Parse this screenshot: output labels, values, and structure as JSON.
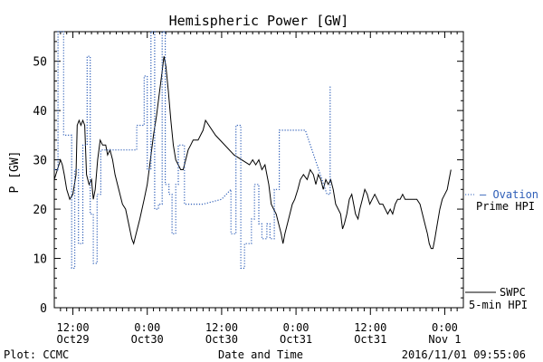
{
  "chart_data": {
    "type": "line",
    "title": "Hemispheric Power [GW]",
    "xlabel": "Date and Time",
    "ylabel": "P [GW]",
    "ylim": [
      0,
      56
    ],
    "xlim": [
      0,
      66
    ],
    "x_unit_note": "",
    "yticks": [
      0,
      10,
      20,
      30,
      40,
      50
    ],
    "xticks": [
      {
        "x": 3,
        "line1": "12:00",
        "line2": "Oct29"
      },
      {
        "x": 15,
        "line1": "0:00",
        "line2": "Oct30"
      },
      {
        "x": 27,
        "line1": "12:00",
        "line2": "Oct30"
      },
      {
        "x": 39,
        "line1": "0:00",
        "line2": "Oct31"
      },
      {
        "x": 51,
        "line1": "12:00",
        "line2": "Oct31"
      },
      {
        "x": 63,
        "line1": "0:00",
        "line2": "Nov 1"
      }
    ],
    "grid": false,
    "legend_placement": "right",
    "footer_left": "Plot: CCMC",
    "footer_right": "2016/11/01 09:55:06",
    "series": [
      {
        "name": "SWPC 5-min HPI",
        "label_line1": "SWPC",
        "label_line2": "5-min HPI",
        "color": "#000000",
        "style": "solid",
        "points": [
          [
            0,
            26
          ],
          [
            0.5,
            28
          ],
          [
            1,
            30
          ],
          [
            1.3,
            29
          ],
          [
            1.6,
            27
          ],
          [
            2,
            24
          ],
          [
            2.5,
            22
          ],
          [
            3,
            23
          ],
          [
            3.5,
            27
          ],
          [
            3.7,
            37
          ],
          [
            4,
            38
          ],
          [
            4.3,
            37
          ],
          [
            4.6,
            38
          ],
          [
            4.9,
            37
          ],
          [
            5.2,
            27
          ],
          [
            5.6,
            25
          ],
          [
            6,
            26
          ],
          [
            6.3,
            22
          ],
          [
            6.6,
            24
          ],
          [
            7,
            30
          ],
          [
            7.4,
            34
          ],
          [
            7.8,
            33
          ],
          [
            8.3,
            33
          ],
          [
            8.6,
            31
          ],
          [
            9,
            32
          ],
          [
            9.4,
            30
          ],
          [
            9.8,
            27
          ],
          [
            10.4,
            24
          ],
          [
            11,
            21
          ],
          [
            11.5,
            20
          ],
          [
            12,
            17
          ],
          [
            12.5,
            14
          ],
          [
            12.8,
            13
          ],
          [
            13.2,
            15
          ],
          [
            13.8,
            18
          ],
          [
            14.5,
            22
          ],
          [
            15,
            25
          ],
          [
            15.5,
            30
          ],
          [
            16,
            35
          ],
          [
            16.5,
            39
          ],
          [
            17,
            44
          ],
          [
            17.4,
            48
          ],
          [
            17.7,
            51
          ],
          [
            18,
            49
          ],
          [
            18.4,
            44
          ],
          [
            18.8,
            38
          ],
          [
            19.2,
            33
          ],
          [
            19.6,
            30
          ],
          [
            20,
            29
          ],
          [
            20.4,
            28
          ],
          [
            20.8,
            28
          ],
          [
            21.2,
            30
          ],
          [
            21.6,
            32
          ],
          [
            22,
            33
          ],
          [
            22.4,
            34
          ],
          [
            22.8,
            34
          ],
          [
            23.2,
            34
          ],
          [
            23.6,
            35
          ],
          [
            24,
            36
          ],
          [
            24.4,
            38
          ],
          [
            26,
            35
          ],
          [
            29,
            31
          ],
          [
            31.5,
            29
          ],
          [
            32,
            30
          ],
          [
            32.5,
            29
          ],
          [
            33,
            30
          ],
          [
            33.5,
            28
          ],
          [
            34,
            29
          ],
          [
            34.6,
            25
          ],
          [
            35,
            21
          ],
          [
            35.4,
            20
          ],
          [
            35.8,
            19
          ],
          [
            36.2,
            17
          ],
          [
            36.6,
            15
          ],
          [
            36.9,
            13
          ],
          [
            37.2,
            15
          ],
          [
            37.8,
            18
          ],
          [
            38.4,
            21
          ],
          [
            38.8,
            22
          ],
          [
            39.3,
            24
          ],
          [
            39.7,
            26
          ],
          [
            40.2,
            27
          ],
          [
            40.8,
            26
          ],
          [
            41.3,
            28
          ],
          [
            41.8,
            27
          ],
          [
            42.2,
            25
          ],
          [
            42.6,
            27
          ],
          [
            43,
            26
          ],
          [
            43.4,
            24
          ],
          [
            43.8,
            26
          ],
          [
            44.2,
            25
          ],
          [
            44.6,
            26
          ],
          [
            45,
            24
          ],
          [
            45.4,
            21
          ],
          [
            45.8,
            20
          ],
          [
            46.2,
            19
          ],
          [
            46.5,
            16
          ],
          [
            46.8,
            17
          ],
          [
            47.2,
            19
          ],
          [
            47.6,
            22
          ],
          [
            48,
            23
          ],
          [
            48.3,
            21
          ],
          [
            48.6,
            19
          ],
          [
            49,
            18
          ],
          [
            49.3,
            20
          ],
          [
            49.7,
            22
          ],
          [
            50.1,
            24
          ],
          [
            50.5,
            23
          ],
          [
            50.9,
            21
          ],
          [
            51.3,
            22
          ],
          [
            51.7,
            23
          ],
          [
            52.1,
            22
          ],
          [
            52.5,
            21
          ],
          [
            53,
            21
          ],
          [
            53.4,
            20
          ],
          [
            53.8,
            19
          ],
          [
            54.2,
            20
          ],
          [
            54.6,
            19
          ],
          [
            55,
            21
          ],
          [
            55.4,
            22
          ],
          [
            55.8,
            22
          ],
          [
            56.2,
            23
          ],
          [
            56.6,
            22
          ],
          [
            57,
            22
          ],
          [
            57.5,
            22
          ],
          [
            58,
            22
          ],
          [
            58.5,
            22
          ],
          [
            59,
            21
          ],
          [
            59.4,
            19
          ],
          [
            59.8,
            17
          ],
          [
            60.2,
            15
          ],
          [
            60.5,
            13
          ],
          [
            60.8,
            12
          ],
          [
            61.1,
            12
          ],
          [
            61.4,
            14
          ],
          [
            61.8,
            17
          ],
          [
            62.2,
            20
          ],
          [
            62.6,
            22
          ],
          [
            63,
            23
          ],
          [
            63.4,
            24
          ],
          [
            63.7,
            26
          ],
          [
            64,
            28
          ]
        ]
      },
      {
        "name": "Ovation Prime HPI",
        "label_line1": "Ovation",
        "label_line2": "Prime HPI",
        "color": "#2f5fb8",
        "style": "dotted",
        "points": [
          [
            0,
            28
          ],
          [
            0.6,
            28
          ],
          [
            0.6,
            56
          ],
          [
            1.5,
            56
          ],
          [
            1.5,
            35
          ],
          [
            2.8,
            35
          ],
          [
            2.8,
            8
          ],
          [
            3.3,
            8
          ],
          [
            3.3,
            28
          ],
          [
            3.9,
            28
          ],
          [
            3.9,
            13
          ],
          [
            4.6,
            13
          ],
          [
            4.6,
            33
          ],
          [
            5.3,
            33
          ],
          [
            5.3,
            51
          ],
          [
            5.8,
            51
          ],
          [
            5.8,
            19
          ],
          [
            6.3,
            19
          ],
          [
            6.3,
            9
          ],
          [
            6.9,
            9
          ],
          [
            6.9,
            23
          ],
          [
            7.5,
            23
          ],
          [
            7.5,
            32
          ],
          [
            12.5,
            32
          ],
          [
            12.5,
            32
          ],
          [
            13.3,
            32
          ],
          [
            13.3,
            37
          ],
          [
            14.5,
            37
          ],
          [
            14.5,
            47
          ],
          [
            15,
            47
          ],
          [
            15,
            28
          ],
          [
            15.6,
            28
          ],
          [
            15.6,
            56
          ],
          [
            16.2,
            56
          ],
          [
            16.2,
            20
          ],
          [
            16.8,
            20
          ],
          [
            16.8,
            21
          ],
          [
            17.4,
            21
          ],
          [
            17.4,
            56
          ],
          [
            17.9,
            56
          ],
          [
            17.9,
            25
          ],
          [
            18.5,
            25
          ],
          [
            18.5,
            23
          ],
          [
            19,
            23
          ],
          [
            19,
            15
          ],
          [
            19.6,
            15
          ],
          [
            19.6,
            25
          ],
          [
            20,
            25
          ],
          [
            20,
            33
          ],
          [
            21,
            33
          ],
          [
            21,
            21
          ],
          [
            24,
            21
          ],
          [
            27,
            22
          ],
          [
            28.5,
            24
          ],
          [
            28.5,
            15
          ],
          [
            29.3,
            15
          ],
          [
            29.3,
            37
          ],
          [
            30.1,
            37
          ],
          [
            30.1,
            8
          ],
          [
            30.7,
            8
          ],
          [
            30.7,
            13
          ],
          [
            31.8,
            13
          ],
          [
            31.8,
            18
          ],
          [
            32.3,
            18
          ],
          [
            32.3,
            25
          ],
          [
            33,
            25
          ],
          [
            33,
            17
          ],
          [
            33.5,
            17
          ],
          [
            33.5,
            14
          ],
          [
            34.3,
            14
          ],
          [
            34.3,
            17
          ],
          [
            34.8,
            17
          ],
          [
            34.8,
            14
          ],
          [
            35.5,
            14
          ],
          [
            35.5,
            24
          ],
          [
            36.3,
            24
          ],
          [
            36.3,
            36
          ],
          [
            39,
            36
          ],
          [
            40.5,
            36
          ],
          [
            44,
            23
          ],
          [
            44.5,
            23
          ],
          [
            44.5,
            45
          ]
        ]
      }
    ]
  }
}
